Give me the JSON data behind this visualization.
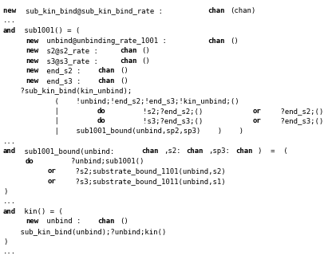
{
  "bg_color": "#ffffff",
  "text_color": "#000000",
  "font_size": 6.5,
  "fig_width": 4.11,
  "fig_height": 3.5,
  "dpi": 100,
  "lines": [
    [
      [
        "new ",
        true
      ],
      [
        "sub_kin_bind@sub_kin_bind_rate : ",
        false
      ],
      [
        "chan",
        true
      ],
      [
        "(chan)",
        false
      ]
    ],
    [
      [
        "...",
        false
      ]
    ],
    [
      [
        "and",
        true
      ],
      [
        " sub1001() = (",
        false
      ]
    ],
    [
      [
        "    ",
        false
      ],
      [
        "new",
        true
      ],
      [
        " unbind@unbinding_rate_1001 : ",
        false
      ],
      [
        "chan",
        true
      ],
      [
        "()",
        false
      ]
    ],
    [
      [
        "    ",
        false
      ],
      [
        "new",
        true
      ],
      [
        " s2@s2_rate : ",
        false
      ],
      [
        "chan",
        true
      ],
      [
        "()",
        false
      ]
    ],
    [
      [
        "    ",
        false
      ],
      [
        "new",
        true
      ],
      [
        " s3@s3_rate : ",
        false
      ],
      [
        "chan",
        true
      ],
      [
        "()",
        false
      ]
    ],
    [
      [
        "    ",
        false
      ],
      [
        "new",
        true
      ],
      [
        " end_s2 : ",
        false
      ],
      [
        "chan",
        true
      ],
      [
        "()",
        false
      ]
    ],
    [
      [
        "    ",
        false
      ],
      [
        "new",
        true
      ],
      [
        " end_s3 : ",
        false
      ],
      [
        "chan",
        true
      ],
      [
        "()",
        false
      ]
    ],
    [
      [
        "    ?sub_kin_bind(kin_unbind);",
        false
      ]
    ],
    [
      [
        "            (    !unbind;!end_s2;!end_s3;!kin_unbind;()",
        false
      ]
    ],
    [
      [
        "            |    ",
        false
      ],
      [
        "do",
        true
      ],
      [
        "        !s2;?end_s2;()    ",
        false
      ],
      [
        "or",
        true
      ],
      [
        "    ?end_s2;()",
        false
      ]
    ],
    [
      [
        "            |    ",
        false
      ],
      [
        "do",
        true
      ],
      [
        "        !s3;?end_s3;()    ",
        false
      ],
      [
        "or",
        true
      ],
      [
        "    ?end_s3;()",
        false
      ]
    ],
    [
      [
        "            |    sub1001_bound(unbind,sp2,sp3)    )    )",
        false
      ]
    ],
    [
      [
        "...",
        false
      ]
    ],
    [
      [
        "and",
        true
      ],
      [
        " sub1001_bound(unbind:",
        false
      ],
      [
        "chan",
        true
      ],
      [
        ",s2:",
        false
      ],
      [
        "chan",
        true
      ],
      [
        ",sp3:",
        false
      ],
      [
        "chan",
        true
      ],
      [
        ")  =  (",
        false
      ]
    ],
    [
      [
        "    ",
        false
      ],
      [
        "do",
        true
      ],
      [
        "        ?unbind;sub1001()",
        false
      ]
    ],
    [
      [
        "        ",
        false
      ],
      [
        "or",
        true
      ],
      [
        "    ?s2;substrate_bound_1101(unbind,s2)",
        false
      ]
    ],
    [
      [
        "        ",
        false
      ],
      [
        "or",
        true
      ],
      [
        "    ?s3;substrate_bound_1011(unbind,s1)",
        false
      ]
    ],
    [
      [
        ")",
        false
      ]
    ],
    [
      [
        "...",
        false
      ]
    ],
    [
      [
        "and",
        true
      ],
      [
        " kin() = (",
        false
      ]
    ],
    [
      [
        "    ",
        false
      ],
      [
        "new",
        true
      ],
      [
        " unbind : ",
        false
      ],
      [
        "chan",
        true
      ],
      [
        "()",
        false
      ]
    ],
    [
      [
        "    sub_kin_bind(unbind);?unbind;kin()",
        false
      ]
    ],
    [
      [
        ")",
        false
      ]
    ],
    [
      [
        "...",
        false
      ]
    ]
  ]
}
